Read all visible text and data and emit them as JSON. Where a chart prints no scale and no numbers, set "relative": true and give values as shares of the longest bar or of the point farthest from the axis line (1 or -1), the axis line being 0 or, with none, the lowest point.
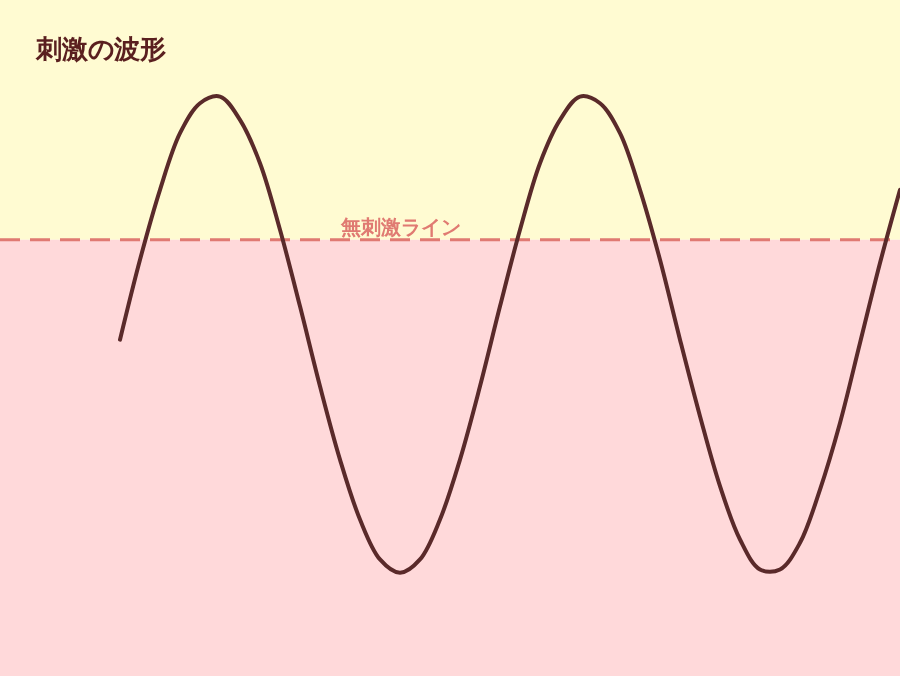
{
  "chart_data": {
    "type": "line",
    "title": "刺激の波形",
    "relative": true,
    "line_style": "solid",
    "marker": "none",
    "categories": [
      null,
      null,
      null,
      null,
      null,
      null,
      null,
      null,
      null,
      null,
      null,
      null,
      null,
      null,
      null,
      null,
      null,
      null,
      null,
      null,
      null,
      null,
      null,
      null,
      null,
      null,
      null,
      null,
      null,
      null,
      null,
      null,
      null,
      null,
      null,
      null,
      null,
      null,
      null,
      null
    ],
    "series": [
      {
        "color": "#5a2a2a",
        "values": [
          -0.3,
          -0.06,
          0.15,
          0.32,
          0.41,
          0.43,
          0.36,
          0.23,
          0.03,
          -0.2,
          -0.44,
          -0.66,
          -0.84,
          -0.96,
          -1.0,
          -0.96,
          -0.84,
          -0.66,
          -0.44,
          -0.2,
          0.03,
          0.23,
          0.36,
          0.43,
          0.41,
          0.32,
          0.15,
          -0.06,
          -0.3,
          -0.53,
          -0.74,
          -0.9,
          -0.99,
          -0.99,
          -0.91,
          -0.75,
          -0.55,
          -0.31,
          -0.07,
          0.15
        ]
      }
    ],
    "ref_lines": [
      {
        "axis": "y",
        "value": 0,
        "label": "無刺激ライン",
        "color": "#e07a72",
        "line_style": "dashed"
      }
    ],
    "bands": [
      {
        "axis": "y",
        "from": 0,
        "to": 0.72,
        "color": "#fffbd2"
      },
      {
        "axis": "y",
        "from": -1.31,
        "to": 0,
        "color": "#ffd9da"
      }
    ]
  }
}
